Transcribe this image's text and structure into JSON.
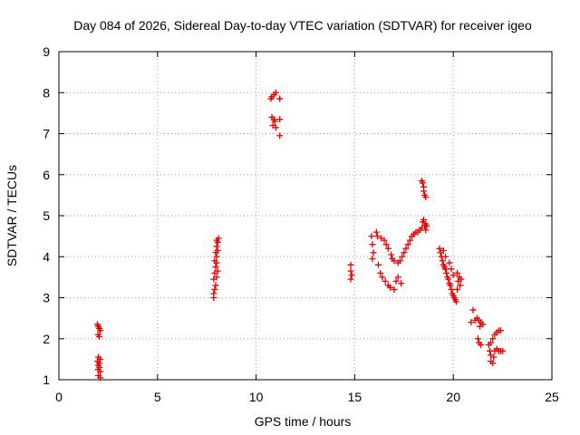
{
  "chart_data": {
    "type": "scatter",
    "title": "Day 084 of 2026, Sidereal Day-to-day VTEC variation (SDTVAR) for receiver igeo",
    "xlabel": "GPS time / hours",
    "ylabel": "SDTVAR / TECUs",
    "xlim": [
      0,
      25
    ],
    "ylim": [
      1,
      9
    ],
    "xticks": [
      "0",
      "5",
      "10",
      "15",
      "20",
      "25"
    ],
    "yticks": [
      "1",
      "2",
      "3",
      "4",
      "5",
      "6",
      "7",
      "8",
      "9"
    ],
    "grid": true,
    "marker": "plus",
    "color": "#e00000",
    "series": [
      {
        "name": "SDTVAR",
        "points": [
          [
            1.95,
            2.35
          ],
          [
            2.0,
            2.3
          ],
          [
            2.05,
            2.25
          ],
          [
            2.1,
            2.2
          ],
          [
            1.98,
            2.1
          ],
          [
            2.05,
            2.05
          ],
          [
            2.0,
            1.55
          ],
          [
            2.1,
            1.5
          ],
          [
            1.95,
            1.45
          ],
          [
            2.05,
            1.4
          ],
          [
            2.0,
            1.35
          ],
          [
            2.05,
            1.3
          ],
          [
            1.98,
            1.25
          ],
          [
            2.1,
            1.2
          ],
          [
            2.0,
            1.1
          ],
          [
            2.1,
            1.05
          ],
          [
            7.85,
            3.0
          ],
          [
            7.85,
            3.1
          ],
          [
            7.9,
            3.2
          ],
          [
            7.95,
            3.3
          ],
          [
            7.85,
            3.45
          ],
          [
            8.0,
            3.5
          ],
          [
            7.9,
            3.6
          ],
          [
            8.05,
            3.65
          ],
          [
            7.95,
            3.75
          ],
          [
            8.0,
            3.85
          ],
          [
            7.9,
            3.9
          ],
          [
            8.0,
            4.0
          ],
          [
            7.95,
            4.1
          ],
          [
            8.05,
            4.15
          ],
          [
            8.0,
            4.25
          ],
          [
            8.05,
            4.35
          ],
          [
            8.0,
            4.4
          ],
          [
            8.1,
            4.45
          ],
          [
            10.8,
            7.9
          ],
          [
            10.9,
            7.95
          ],
          [
            11.0,
            8.0
          ],
          [
            10.75,
            7.85
          ],
          [
            11.2,
            7.85
          ],
          [
            10.8,
            7.4
          ],
          [
            10.9,
            7.35
          ],
          [
            10.95,
            7.3
          ],
          [
            11.2,
            7.35
          ],
          [
            10.85,
            7.2
          ],
          [
            11.0,
            7.15
          ],
          [
            11.2,
            6.95
          ],
          [
            14.8,
            3.8
          ],
          [
            14.8,
            3.65
          ],
          [
            14.85,
            3.55
          ],
          [
            14.8,
            3.45
          ],
          [
            15.85,
            4.5
          ],
          [
            15.9,
            4.3
          ],
          [
            15.95,
            4.1
          ],
          [
            15.9,
            3.95
          ],
          [
            16.1,
            4.6
          ],
          [
            16.15,
            4.5
          ],
          [
            16.2,
            3.8
          ],
          [
            16.3,
            3.6
          ],
          [
            16.35,
            4.45
          ],
          [
            16.4,
            3.5
          ],
          [
            16.5,
            4.4
          ],
          [
            16.55,
            3.4
          ],
          [
            16.6,
            4.3
          ],
          [
            16.7,
            3.3
          ],
          [
            16.7,
            4.2
          ],
          [
            16.8,
            3.25
          ],
          [
            16.85,
            4.05
          ],
          [
            16.9,
            3.95
          ],
          [
            17.0,
            3.2
          ],
          [
            17.0,
            3.9
          ],
          [
            17.1,
            3.4
          ],
          [
            17.2,
            3.5
          ],
          [
            17.2,
            3.85
          ],
          [
            17.3,
            3.9
          ],
          [
            17.35,
            3.35
          ],
          [
            17.4,
            4.0
          ],
          [
            17.5,
            4.1
          ],
          [
            17.6,
            4.2
          ],
          [
            17.7,
            4.3
          ],
          [
            17.8,
            4.4
          ],
          [
            17.9,
            4.5
          ],
          [
            18.0,
            4.55
          ],
          [
            18.1,
            4.6
          ],
          [
            18.2,
            4.6
          ],
          [
            18.3,
            4.65
          ],
          [
            18.4,
            4.7
          ],
          [
            18.45,
            4.85
          ],
          [
            18.5,
            4.9
          ],
          [
            18.55,
            4.75
          ],
          [
            18.6,
            4.8
          ],
          [
            18.65,
            4.75
          ],
          [
            18.6,
            4.65
          ],
          [
            18.4,
            5.85
          ],
          [
            18.45,
            5.8
          ],
          [
            18.5,
            5.7
          ],
          [
            18.5,
            5.6
          ],
          [
            18.55,
            5.5
          ],
          [
            18.6,
            5.45
          ],
          [
            19.3,
            4.2
          ],
          [
            19.35,
            4.1
          ],
          [
            19.4,
            4.0
          ],
          [
            19.45,
            3.9
          ],
          [
            19.5,
            3.8
          ],
          [
            19.55,
            3.75
          ],
          [
            19.6,
            3.7
          ],
          [
            19.65,
            3.6
          ],
          [
            19.7,
            3.5
          ],
          [
            19.75,
            3.45
          ],
          [
            19.8,
            3.35
          ],
          [
            19.85,
            3.3
          ],
          [
            19.9,
            3.2
          ],
          [
            19.95,
            3.1
          ],
          [
            20.0,
            3.05
          ],
          [
            20.05,
            3.0
          ],
          [
            20.1,
            2.95
          ],
          [
            20.15,
            2.9
          ],
          [
            20.2,
            3.2
          ],
          [
            20.25,
            3.4
          ],
          [
            20.3,
            3.5
          ],
          [
            20.2,
            3.6
          ],
          [
            20.0,
            3.55
          ],
          [
            19.9,
            3.7
          ],
          [
            19.8,
            3.85
          ],
          [
            19.6,
            4.0
          ],
          [
            19.5,
            4.15
          ],
          [
            20.35,
            3.3
          ],
          [
            20.4,
            3.45
          ],
          [
            21.0,
            2.7
          ],
          [
            20.9,
            2.4
          ],
          [
            21.1,
            2.45
          ],
          [
            21.2,
            2.5
          ],
          [
            21.3,
            2.45
          ],
          [
            21.35,
            2.3
          ],
          [
            21.4,
            2.4
          ],
          [
            21.5,
            2.35
          ],
          [
            21.25,
            2.0
          ],
          [
            21.3,
            1.9
          ],
          [
            21.4,
            1.85
          ],
          [
            21.8,
            1.85
          ],
          [
            21.85,
            1.7
          ],
          [
            21.9,
            1.6
          ],
          [
            21.9,
            1.45
          ],
          [
            22.0,
            1.4
          ],
          [
            22.05,
            1.55
          ],
          [
            22.1,
            1.7
          ],
          [
            22.2,
            1.75
          ],
          [
            22.3,
            1.7
          ],
          [
            22.4,
            1.7
          ],
          [
            22.5,
            1.7
          ],
          [
            22.0,
            2.0
          ],
          [
            22.1,
            2.1
          ],
          [
            22.2,
            2.15
          ],
          [
            22.3,
            2.2
          ],
          [
            22.4,
            2.2
          ],
          [
            21.9,
            1.9
          ]
        ]
      }
    ]
  }
}
